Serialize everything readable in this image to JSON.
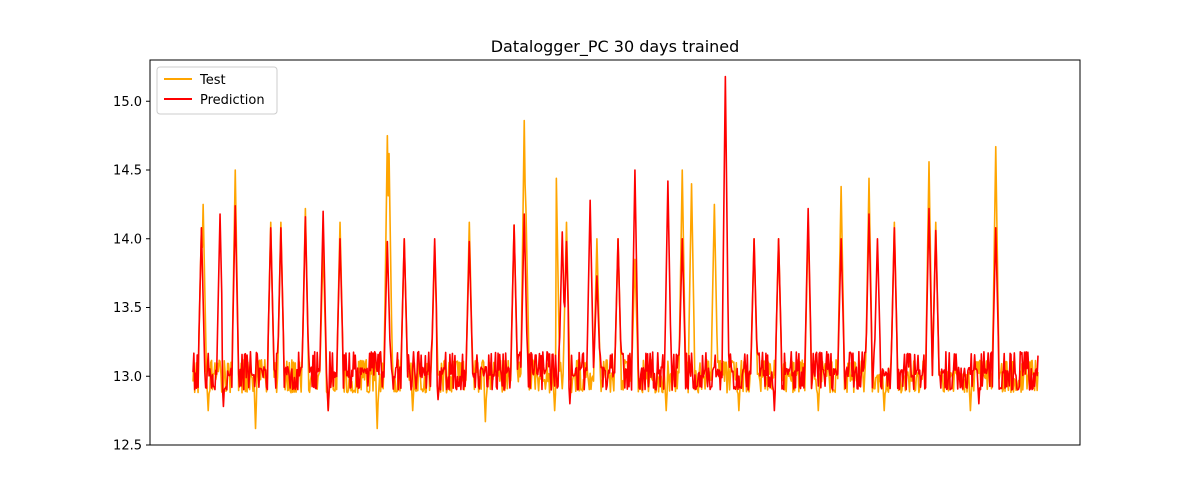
{
  "chart_data": {
    "type": "line",
    "title": "Datalogger_PC 30 days trained",
    "xlabel": "",
    "ylabel": "",
    "ylim": [
      12.5,
      15.3
    ],
    "yticks": [
      12.5,
      13.0,
      13.5,
      14.0,
      14.5,
      15.0
    ],
    "ytick_labels": [
      "12.5",
      "13.0",
      "13.5",
      "14.0",
      "14.5",
      "15.0"
    ],
    "xticks_shown": false,
    "grid": false,
    "legend_position": "upper-left",
    "x_extent": [
      0,
      1000
    ],
    "spikes_note": "",
    "series": [
      {
        "name": "Test",
        "color": "#ffa500",
        "baseline": 13.0,
        "noise_low": 12.88,
        "noise_high": 13.12,
        "spikes": [
          [
            10,
            14.08
          ],
          [
            12,
            14.25
          ],
          [
            50,
            14.5
          ],
          [
            92,
            14.12
          ],
          [
            104,
            14.12
          ],
          [
            133,
            14.22
          ],
          [
            154,
            13.95
          ],
          [
            174,
            14.12
          ],
          [
            230,
            14.75
          ],
          [
            232,
            14.62
          ],
          [
            250,
            14.0
          ],
          [
            286,
            13.95
          ],
          [
            327,
            14.12
          ],
          [
            380,
            14.1
          ],
          [
            392,
            14.86
          ],
          [
            394,
            14.22
          ],
          [
            430,
            14.44
          ],
          [
            442,
            14.12
          ],
          [
            478,
            14.0
          ],
          [
            503,
            14.0
          ],
          [
            523,
            13.85
          ],
          [
            579,
            14.5
          ],
          [
            590,
            14.4
          ],
          [
            617,
            14.25
          ],
          [
            664,
            14.0
          ],
          [
            693,
            14.0
          ],
          [
            728,
            14.12
          ],
          [
            767,
            14.38
          ],
          [
            800,
            14.44
          ],
          [
            830,
            14.12
          ],
          [
            871,
            14.56
          ],
          [
            879,
            14.12
          ],
          [
            950,
            14.67
          ]
        ],
        "dips": [
          [
            18,
            12.75
          ],
          [
            74,
            12.62
          ],
          [
            160,
            12.75
          ],
          [
            218,
            12.62
          ],
          [
            260,
            12.75
          ],
          [
            346,
            12.67
          ],
          [
            428,
            12.75
          ],
          [
            560,
            12.75
          ],
          [
            646,
            12.75
          ],
          [
            740,
            12.75
          ],
          [
            818,
            12.75
          ],
          [
            920,
            12.75
          ]
        ]
      },
      {
        "name": "Prediction",
        "color": "#ff0000",
        "baseline": 13.03,
        "noise_low": 12.9,
        "noise_high": 13.18,
        "spikes": [
          [
            10,
            14.08
          ],
          [
            32,
            14.18
          ],
          [
            50,
            14.24
          ],
          [
            92,
            14.08
          ],
          [
            104,
            14.08
          ],
          [
            133,
            14.16
          ],
          [
            154,
            14.2
          ],
          [
            174,
            14.0
          ],
          [
            230,
            13.98
          ],
          [
            250,
            14.0
          ],
          [
            286,
            14.0
          ],
          [
            327,
            13.98
          ],
          [
            380,
            14.1
          ],
          [
            392,
            14.18
          ],
          [
            437,
            14.05
          ],
          [
            442,
            13.98
          ],
          [
            470,
            14.28
          ],
          [
            478,
            13.73
          ],
          [
            503,
            14.0
          ],
          [
            523,
            14.5
          ],
          [
            562,
            14.42
          ],
          [
            579,
            14.0
          ],
          [
            630,
            15.18
          ],
          [
            664,
            14.0
          ],
          [
            693,
            14.0
          ],
          [
            728,
            14.22
          ],
          [
            767,
            14.0
          ],
          [
            800,
            14.18
          ],
          [
            810,
            14.0
          ],
          [
            830,
            14.08
          ],
          [
            871,
            14.22
          ],
          [
            879,
            14.06
          ],
          [
            950,
            14.08
          ]
        ],
        "dips": [
          [
            36,
            12.78
          ],
          [
            160,
            12.75
          ],
          [
            290,
            12.83
          ],
          [
            446,
            12.8
          ],
          [
            688,
            12.75
          ],
          [
            930,
            12.8
          ]
        ]
      }
    ]
  }
}
